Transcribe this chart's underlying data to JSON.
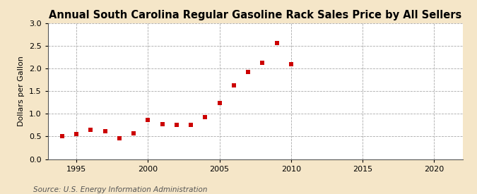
{
  "title": "Annual South Carolina Regular Gasoline Rack Sales Price by All Sellers",
  "ylabel": "Dollars per Gallon",
  "source": "Source: U.S. Energy Information Administration",
  "fig_background_color": "#f5e6c8",
  "plot_background_color": "#ffffff",
  "marker_color": "#cc0000",
  "years": [
    1994,
    1995,
    1996,
    1997,
    1998,
    1999,
    2000,
    2001,
    2002,
    2003,
    2004,
    2005,
    2006,
    2007,
    2008,
    2009,
    2010
  ],
  "values": [
    0.5,
    0.55,
    0.64,
    0.62,
    0.46,
    0.57,
    0.87,
    0.77,
    0.76,
    0.76,
    0.93,
    1.24,
    1.63,
    1.92,
    2.12,
    2.57,
    2.1
  ],
  "xlim": [
    1993,
    2022
  ],
  "ylim": [
    0.0,
    3.0
  ],
  "xticks": [
    1995,
    2000,
    2005,
    2010,
    2015,
    2020
  ],
  "yticks": [
    0.0,
    0.5,
    1.0,
    1.5,
    2.0,
    2.5,
    3.0
  ],
  "title_fontsize": 10.5,
  "label_fontsize": 8,
  "source_fontsize": 7.5,
  "tick_fontsize": 8
}
